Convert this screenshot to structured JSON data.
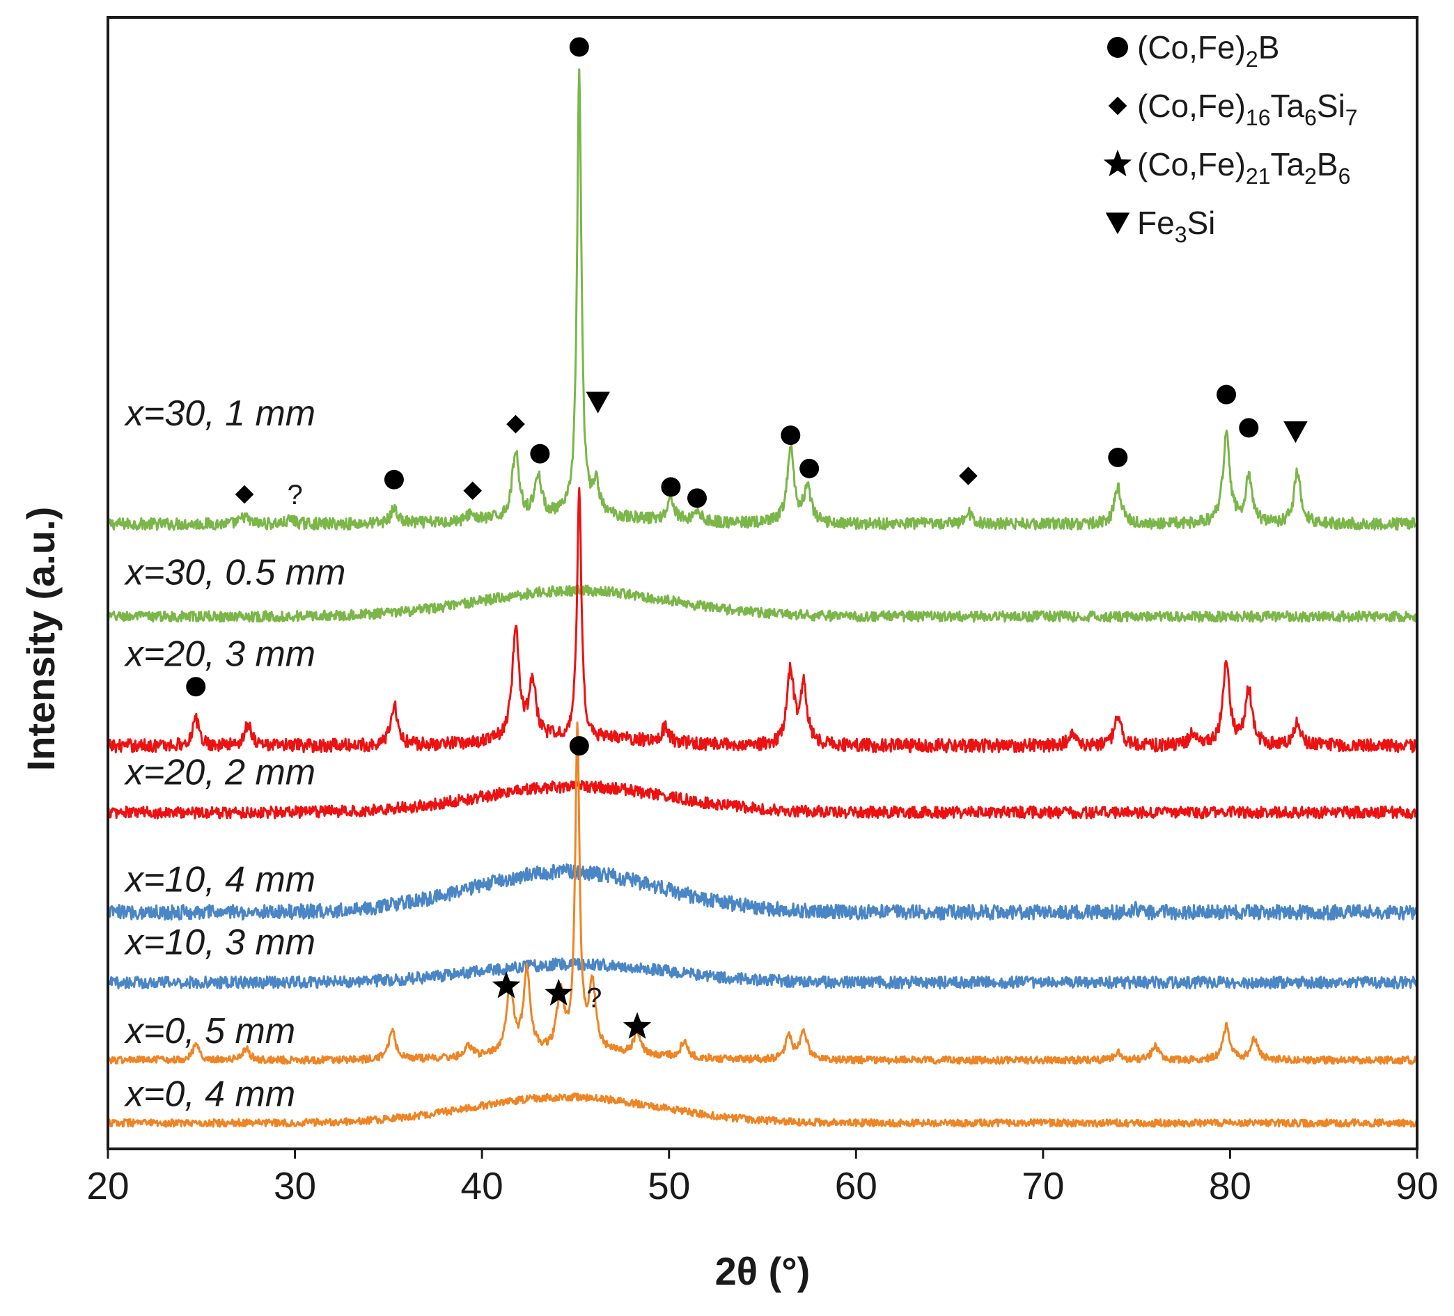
{
  "chart_data": {
    "type": "line",
    "title": "",
    "xlabel": "2θ (°)",
    "ylabel": "Intensity (a.u.)",
    "xlim": [
      20,
      90
    ],
    "xticks": [
      "20",
      "30",
      "40",
      "50",
      "60",
      "70",
      "80",
      "90"
    ],
    "y_ticks_shown": false,
    "colors": {
      "x30": "#7ab648",
      "x20": "#ee1111",
      "x10": "#4a86c6",
      "x0": "#ee8424",
      "axis": "#1a1a1a"
    },
    "legend": {
      "placement": "top-right",
      "items": [
        {
          "marker": "circle",
          "label": "(Co,Fe)",
          "sub": "2",
          "rest": "B"
        },
        {
          "marker": "diamond",
          "label": "(Co,Fe)",
          "sub": "16",
          "rest": "Ta",
          "sub2": "6",
          "rest2": "Si",
          "sub3": "7"
        },
        {
          "marker": "star",
          "label": "(Co,Fe)",
          "sub": "21",
          "rest": "Ta",
          "sub2": "2",
          "rest2": "B",
          "sub3": "6"
        },
        {
          "marker": "triangle-down",
          "label": "Fe",
          "sub": "3",
          "rest": "Si"
        }
      ]
    },
    "series": [
      {
        "name": "x=30, 1 mm",
        "color_key": "x30",
        "offset": 8.1,
        "noise": 0.08,
        "hump": {
          "center": 45,
          "height": 0.1,
          "width": 4
        },
        "peaks": [
          [
            27.3,
            0.1
          ],
          [
            29.8,
            0.06
          ],
          [
            35.3,
            0.2
          ],
          [
            39.4,
            0.1
          ],
          [
            41.8,
            0.9
          ],
          [
            43.0,
            0.55
          ],
          [
            45.2,
            6.0
          ],
          [
            46.1,
            0.4
          ],
          [
            50.1,
            0.3
          ],
          [
            51.5,
            0.15
          ],
          [
            56.5,
            1.0
          ],
          [
            57.4,
            0.5
          ],
          [
            66.0,
            0.15
          ],
          [
            74.0,
            0.5
          ],
          [
            79.8,
            1.2
          ],
          [
            81.0,
            0.6
          ],
          [
            83.6,
            0.7
          ]
        ]
      },
      {
        "name": "x=30, 0.5 mm",
        "color_key": "x30",
        "offset": 6.85,
        "noise": 0.07,
        "hump": {
          "center": 45,
          "height": 0.35,
          "width": 5
        },
        "peaks": []
      },
      {
        "name": "x=20, 3 mm",
        "color_key": "x20",
        "offset": 5.1,
        "noise": 0.09,
        "hump": {
          "center": 45,
          "height": 0.1,
          "width": 4
        },
        "peaks": [
          [
            24.7,
            0.35
          ],
          [
            27.5,
            0.3
          ],
          [
            35.3,
            0.55
          ],
          [
            41.8,
            1.5
          ],
          [
            42.7,
            0.8
          ],
          [
            45.2,
            3.3
          ],
          [
            49.8,
            0.2
          ],
          [
            56.5,
            1.0
          ],
          [
            57.2,
            0.8
          ],
          [
            71.5,
            0.15
          ],
          [
            74.0,
            0.4
          ],
          [
            78.0,
            0.15
          ],
          [
            79.8,
            1.1
          ],
          [
            81.0,
            0.75
          ],
          [
            83.6,
            0.3
          ]
        ]
      },
      {
        "name": "x=20, 2 mm",
        "color_key": "x20",
        "offset": 4.2,
        "noise": 0.08,
        "hump": {
          "center": 45,
          "height": 0.35,
          "width": 5
        },
        "peaks": []
      },
      {
        "name": "x=10, 4 mm",
        "color_key": "x10",
        "offset": 2.85,
        "noise": 0.1,
        "hump": {
          "center": 44.5,
          "height": 0.55,
          "width": 5
        },
        "peaks": [
          [
            75.0,
            0.05
          ]
        ]
      },
      {
        "name": "x=10, 3 mm",
        "color_key": "x10",
        "offset": 1.9,
        "noise": 0.08,
        "hump": {
          "center": 45,
          "height": 0.25,
          "width": 5
        },
        "peaks": []
      },
      {
        "name": "x=0, 5 mm",
        "color_key": "x0",
        "offset": 0.85,
        "noise": 0.05,
        "hump": {
          "center": 45,
          "height": 0.1,
          "width": 4
        },
        "peaks": [
          [
            24.7,
            0.2
          ],
          [
            27.4,
            0.15
          ],
          [
            35.2,
            0.4
          ],
          [
            39.3,
            0.15
          ],
          [
            41.5,
            0.9
          ],
          [
            42.4,
            1.1
          ],
          [
            44.2,
            0.8
          ],
          [
            45.1,
            4.3
          ],
          [
            45.9,
            0.9
          ],
          [
            48.3,
            0.3
          ],
          [
            50.8,
            0.2
          ],
          [
            56.4,
            0.3
          ],
          [
            57.2,
            0.4
          ],
          [
            74.0,
            0.1
          ],
          [
            76.0,
            0.2
          ],
          [
            79.8,
            0.45
          ],
          [
            81.3,
            0.3
          ]
        ]
      },
      {
        "name": "x=0, 4 mm",
        "color_key": "x0",
        "offset": 0.0,
        "noise": 0.05,
        "hump": {
          "center": 44.5,
          "height": 0.35,
          "width": 5
        },
        "peaks": []
      }
    ],
    "peak_markers": [
      {
        "marker": "circle",
        "x": 45.2,
        "y": 14.55
      },
      {
        "marker": "circle",
        "x": 35.3,
        "y": 8.7
      },
      {
        "marker": "circle",
        "x": 43.1,
        "y": 9.05
      },
      {
        "marker": "circle",
        "x": 50.1,
        "y": 8.6
      },
      {
        "marker": "circle",
        "x": 51.5,
        "y": 8.45
      },
      {
        "marker": "circle",
        "x": 56.5,
        "y": 9.3
      },
      {
        "marker": "circle",
        "x": 57.5,
        "y": 8.85
      },
      {
        "marker": "circle",
        "x": 74.0,
        "y": 9.0
      },
      {
        "marker": "circle",
        "x": 79.8,
        "y": 9.85
      },
      {
        "marker": "circle",
        "x": 81.0,
        "y": 9.4
      },
      {
        "marker": "circle",
        "x": 24.7,
        "y": 5.9
      },
      {
        "marker": "circle",
        "x": 45.2,
        "y": 5.1
      },
      {
        "marker": "diamond",
        "x": 27.3,
        "y": 8.5
      },
      {
        "marker": "diamond",
        "x": 39.5,
        "y": 8.55
      },
      {
        "marker": "diamond",
        "x": 41.8,
        "y": 9.45
      },
      {
        "marker": "diamond",
        "x": 66.0,
        "y": 8.75
      },
      {
        "marker": "triangle-down",
        "x": 46.2,
        "y": 9.75
      },
      {
        "marker": "triangle-down",
        "x": 83.5,
        "y": 9.35
      },
      {
        "marker": "star",
        "x": 41.3,
        "y": 1.85
      },
      {
        "marker": "star",
        "x": 44.1,
        "y": 1.75
      },
      {
        "marker": "star",
        "x": 48.3,
        "y": 1.3
      }
    ],
    "unknown_markers": [
      {
        "text": "?",
        "x": 30.0,
        "y": 8.5
      },
      {
        "text": "?",
        "x": 46.0,
        "y": 1.7
      }
    ],
    "curve_labels": [
      {
        "text": "x=30, 1 mm",
        "y": 9.6,
        "color_key": "x30"
      },
      {
        "text": "x=30, 0.5 mm",
        "y": 7.45,
        "color_key": "x30"
      },
      {
        "text": "x=20, 3 mm",
        "y": 6.35,
        "color_key": "x20"
      },
      {
        "text": "x=20, 2 mm",
        "y": 4.75,
        "color_key": "x20"
      },
      {
        "text": "x=10, 4 mm",
        "y": 3.3,
        "color_key": "x10"
      },
      {
        "text": "x=10, 3 mm",
        "y": 2.45,
        "color_key": "x10"
      },
      {
        "text": "x=0, 5 mm",
        "y": 1.25,
        "color_key": "x0"
      },
      {
        "text": "x=0, 4 mm",
        "y": 0.4,
        "color_key": "x0"
      }
    ]
  }
}
